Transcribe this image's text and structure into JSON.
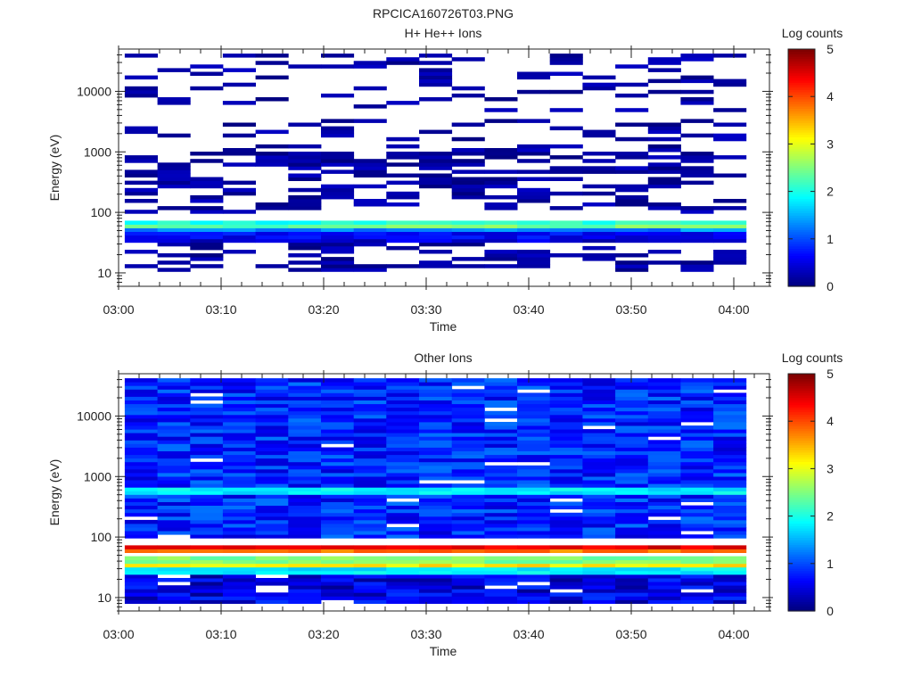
{
  "figure": {
    "title": "RPCICA160726T03.PNG"
  },
  "chart_data": [
    {
      "type": "heatmap",
      "title": "H+ He++ Ions",
      "xlabel": "Time",
      "ylabel": "Energy (eV)",
      "x_tick_labels": [
        "03:00",
        "03:10",
        "03:20",
        "03:30",
        "03:40",
        "03:50",
        "04:00"
      ],
      "y_tick_labels": [
        "10",
        "100",
        "1000",
        "10000"
      ],
      "y_scale": "log",
      "ylim": [
        6,
        50000
      ],
      "time_range": [
        "03:00",
        "04:04"
      ],
      "colorbar": {
        "label": "Log counts",
        "ticks": [
          "0",
          "1",
          "2",
          "3",
          "4",
          "5"
        ],
        "range": [
          0,
          5
        ]
      },
      "bands": [
        {
          "energy_range": [
            60,
            70
          ],
          "log_counts": 2.0
        },
        {
          "energy_range": [
            52,
            60
          ],
          "log_counts": 2.4
        },
        {
          "energy_range": [
            47,
            52
          ],
          "log_counts": 1.3
        },
        {
          "energy_range": [
            38,
            47
          ],
          "log_counts": 0.6
        },
        {
          "energy_range": [
            30,
            38
          ],
          "log_counts": 0.4
        },
        {
          "energy_range": [
            10,
            30
          ],
          "log_counts": 0.05
        },
        {
          "energy_range": [
            100,
            1000
          ],
          "log_counts": 0.15
        },
        {
          "energy_range": [
            1000,
            40000
          ],
          "log_counts": 0.02
        }
      ],
      "description": "Sparse dark-blue counts across 100 eV-40 keV; bright yellow/cyan band near 55-65 eV through the whole interval"
    },
    {
      "type": "heatmap",
      "title": "Other Ions",
      "xlabel": "Time",
      "ylabel": "Energy (eV)",
      "x_tick_labels": [
        "03:00",
        "03:10",
        "03:20",
        "03:30",
        "03:40",
        "03:50",
        "04:00"
      ],
      "y_tick_labels": [
        "10",
        "100",
        "1000",
        "10000"
      ],
      "y_scale": "log",
      "ylim": [
        6,
        50000
      ],
      "time_range": [
        "03:00",
        "04:04"
      ],
      "colorbar": {
        "label": "Log counts",
        "ticks": [
          "0",
          "1",
          "2",
          "3",
          "4",
          "5"
        ],
        "range": [
          0,
          5
        ]
      },
      "bands": [
        {
          "energy_range": [
            60,
            70
          ],
          "log_counts": 4.5
        },
        {
          "energy_range": [
            55,
            60
          ],
          "log_counts": 3.8
        },
        {
          "energy_range": [
            36,
            45
          ],
          "log_counts": 2.5
        },
        {
          "energy_range": [
            30,
            36
          ],
          "log_counts": 3.2
        },
        {
          "energy_range": [
            25,
            30
          ],
          "log_counts": 1.8
        },
        {
          "energy_range": [
            500,
            700
          ],
          "log_counts": 1.8
        },
        {
          "energy_range": [
            6,
            25
          ],
          "log_counts": 0.5
        },
        {
          "energy_range": [
            100,
            40000
          ],
          "log_counts": 0.8
        }
      ],
      "description": "Moderate blue counts across all energies; strong red band near 60-70 eV, yellow band near 30-40 eV, cyan band near 600 eV"
    }
  ]
}
